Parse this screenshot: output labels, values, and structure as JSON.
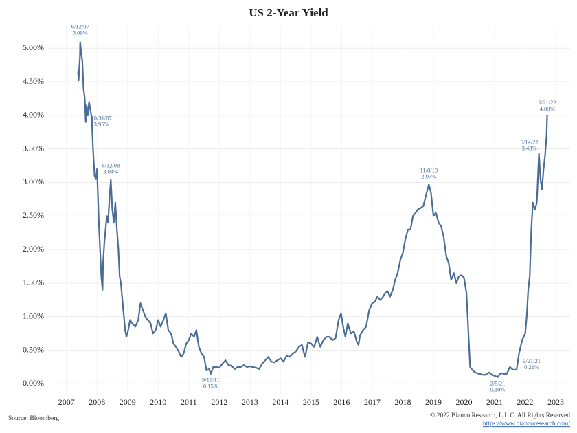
{
  "chart_data": {
    "type": "line",
    "title": "US 2-Year Yield",
    "source": "Source: Bloomberg",
    "copyright": "© 2022 Bianco Research, L.L.C. All Rights Reserved",
    "url": "https://www.biancoresearch.com/",
    "grid": true,
    "xlim": [
      2006.4,
      2023.47
    ],
    "xticks": [
      2007,
      2008,
      2009,
      2010,
      2011,
      2012,
      2013,
      2014,
      2015,
      2016,
      2017,
      2018,
      2019,
      2020,
      2021,
      2022,
      2023
    ],
    "ylim": [
      -0.17,
      5.33
    ],
    "yticks": [
      {
        "value": 0,
        "label": "0.00%"
      },
      {
        "value": 0.5,
        "label": "0.50%"
      },
      {
        "value": 1,
        "label": "1.00%"
      },
      {
        "value": 1.5,
        "label": "1.50%"
      },
      {
        "value": 2,
        "label": "2.00%"
      },
      {
        "value": 2.5,
        "label": "2.50%"
      },
      {
        "value": 3,
        "label": "3.00%"
      },
      {
        "value": 3.5,
        "label": "3.50%"
      },
      {
        "value": 4,
        "label": "4.00%"
      },
      {
        "value": 4.5,
        "label": "4.50%"
      },
      {
        "value": 5,
        "label": "5.00%"
      }
    ],
    "x": [
      2007.38,
      2007.4,
      2007.42,
      2007.44,
      2007.45,
      2007.48,
      2007.52,
      2007.56,
      2007.6,
      2007.63,
      2007.66,
      2007.7,
      2007.74,
      2007.83,
      2007.87,
      2007.92,
      2007.96,
      2008.0,
      2008.03,
      2008.06,
      2008.1,
      2008.14,
      2008.18,
      2008.2,
      2008.24,
      2008.28,
      2008.32,
      2008.36,
      2008.4,
      2008.45,
      2008.5,
      2008.55,
      2008.6,
      2008.65,
      2008.7,
      2008.74,
      2008.78,
      2008.82,
      2008.86,
      2008.92,
      2008.96,
      2009.02,
      2009.08,
      2009.15,
      2009.25,
      2009.35,
      2009.42,
      2009.5,
      2009.58,
      2009.66,
      2009.75,
      2009.83,
      2009.92,
      2010.0,
      2010.08,
      2010.17,
      2010.25,
      2010.33,
      2010.42,
      2010.5,
      2010.58,
      2010.67,
      2010.75,
      2010.83,
      2010.92,
      2011.0,
      2011.08,
      2011.17,
      2011.25,
      2011.33,
      2011.42,
      2011.5,
      2011.58,
      2011.67,
      2011.72,
      2011.8,
      2011.9,
      2012.0,
      2012.1,
      2012.2,
      2012.3,
      2012.4,
      2012.5,
      2012.6,
      2012.7,
      2012.8,
      2012.9,
      2013.0,
      2013.1,
      2013.2,
      2013.3,
      2013.4,
      2013.5,
      2013.6,
      2013.7,
      2013.8,
      2013.9,
      2014.0,
      2014.1,
      2014.2,
      2014.3,
      2014.4,
      2014.5,
      2014.6,
      2014.7,
      2014.8,
      2014.9,
      2015.0,
      2015.1,
      2015.2,
      2015.3,
      2015.4,
      2015.5,
      2015.6,
      2015.7,
      2015.8,
      2015.9,
      2015.98,
      2016.05,
      2016.12,
      2016.2,
      2016.3,
      2016.4,
      2016.5,
      2016.55,
      2016.6,
      2016.7,
      2016.8,
      2016.9,
      2017.0,
      2017.08,
      2017.17,
      2017.25,
      2017.33,
      2017.42,
      2017.5,
      2017.58,
      2017.67,
      2017.75,
      2017.83,
      2017.92,
      2018.0,
      2018.08,
      2018.17,
      2018.25,
      2018.33,
      2018.42,
      2018.5,
      2018.58,
      2018.67,
      2018.75,
      2018.85,
      2018.92,
      2019.0,
      2019.08,
      2019.17,
      2019.25,
      2019.33,
      2019.42,
      2019.5,
      2019.58,
      2019.67,
      2019.75,
      2019.83,
      2019.92,
      2020.0,
      2020.08,
      2020.15,
      2020.2,
      2020.25,
      2020.33,
      2020.42,
      2020.5,
      2020.58,
      2020.67,
      2020.75,
      2020.83,
      2020.92,
      2021.0,
      2021.1,
      2021.2,
      2021.3,
      2021.4,
      2021.5,
      2021.6,
      2021.72,
      2021.8,
      2021.9,
      2022.0,
      2022.05,
      2022.1,
      2022.15,
      2022.2,
      2022.25,
      2022.32,
      2022.38,
      2022.45,
      2022.5,
      2022.55,
      2022.6,
      2022.65,
      2022.7,
      2022.72
    ],
    "series": [
      {
        "name": "US 2-Year Yield",
        "color": "#4a6d96",
        "values": [
          4.65,
          4.52,
          4.72,
          4.85,
          5.09,
          4.95,
          4.8,
          4.4,
          4.25,
          3.9,
          4.15,
          4.0,
          4.2,
          3.95,
          3.5,
          3.1,
          3.05,
          3.2,
          2.8,
          2.4,
          2.0,
          1.6,
          1.4,
          1.8,
          2.1,
          2.3,
          2.5,
          2.4,
          2.7,
          3.04,
          2.6,
          2.4,
          2.7,
          2.3,
          2.0,
          1.6,
          1.5,
          1.3,
          1.1,
          0.8,
          0.7,
          0.8,
          0.95,
          0.9,
          0.85,
          0.95,
          1.2,
          1.1,
          1.0,
          0.95,
          0.9,
          0.75,
          0.8,
          0.95,
          0.85,
          0.95,
          1.05,
          0.8,
          0.75,
          0.6,
          0.55,
          0.48,
          0.4,
          0.45,
          0.6,
          0.65,
          0.75,
          0.7,
          0.8,
          0.55,
          0.45,
          0.4,
          0.2,
          0.22,
          0.15,
          0.25,
          0.25,
          0.24,
          0.3,
          0.35,
          0.28,
          0.27,
          0.22,
          0.25,
          0.25,
          0.28,
          0.25,
          0.26,
          0.25,
          0.24,
          0.22,
          0.3,
          0.35,
          0.4,
          0.33,
          0.32,
          0.35,
          0.38,
          0.33,
          0.42,
          0.4,
          0.45,
          0.48,
          0.55,
          0.58,
          0.4,
          0.62,
          0.6,
          0.55,
          0.7,
          0.55,
          0.65,
          0.7,
          0.7,
          0.65,
          0.68,
          0.95,
          1.05,
          0.85,
          0.7,
          0.9,
          0.75,
          0.78,
          0.62,
          0.58,
          0.72,
          0.8,
          0.85,
          1.1,
          1.2,
          1.22,
          1.3,
          1.25,
          1.28,
          1.35,
          1.38,
          1.3,
          1.4,
          1.55,
          1.65,
          1.85,
          1.95,
          2.15,
          2.3,
          2.3,
          2.5,
          2.55,
          2.6,
          2.62,
          2.65,
          2.8,
          2.97,
          2.85,
          2.5,
          2.55,
          2.4,
          2.35,
          2.2,
          1.9,
          1.8,
          1.55,
          1.65,
          1.5,
          1.6,
          1.62,
          1.58,
          1.35,
          0.7,
          0.25,
          0.22,
          0.18,
          0.16,
          0.15,
          0.14,
          0.13,
          0.15,
          0.17,
          0.13,
          0.12,
          0.1,
          0.16,
          0.15,
          0.15,
          0.25,
          0.21,
          0.21,
          0.45,
          0.65,
          0.75,
          1.0,
          1.4,
          1.6,
          2.3,
          2.7,
          2.6,
          2.7,
          3.43,
          3.05,
          2.9,
          3.2,
          3.4,
          3.7,
          4.0
        ]
      }
    ],
    "annotations": [
      {
        "x": 2007.45,
        "y": 5.09,
        "date": "6/12/07",
        "label": "5.09%"
      },
      {
        "x": 2007.83,
        "y": 3.95,
        "date": "10/31/07",
        "label": "3.95%"
      },
      {
        "x": 2008.45,
        "y": 3.04,
        "date": "6/12/08",
        "label": "3.04%"
      },
      {
        "x": 2011.72,
        "y": 0.15,
        "date": "9/19/11",
        "label": "0.15%"
      },
      {
        "x": 2018.85,
        "y": 2.97,
        "date": "11/8/18",
        "label": "2.97%"
      },
      {
        "x": 2021.1,
        "y": 0.1,
        "date": "2/5/21",
        "label": "0.10%"
      },
      {
        "x": 2021.72,
        "y": 0.21,
        "date": "9/21/21",
        "label": "0.21%"
      },
      {
        "x": 2022.45,
        "y": 3.43,
        "date": "6/14/22",
        "label": "3.43%"
      },
      {
        "x": 2022.72,
        "y": 4.0,
        "date": "9/21/22",
        "label": "4.00%"
      }
    ]
  }
}
